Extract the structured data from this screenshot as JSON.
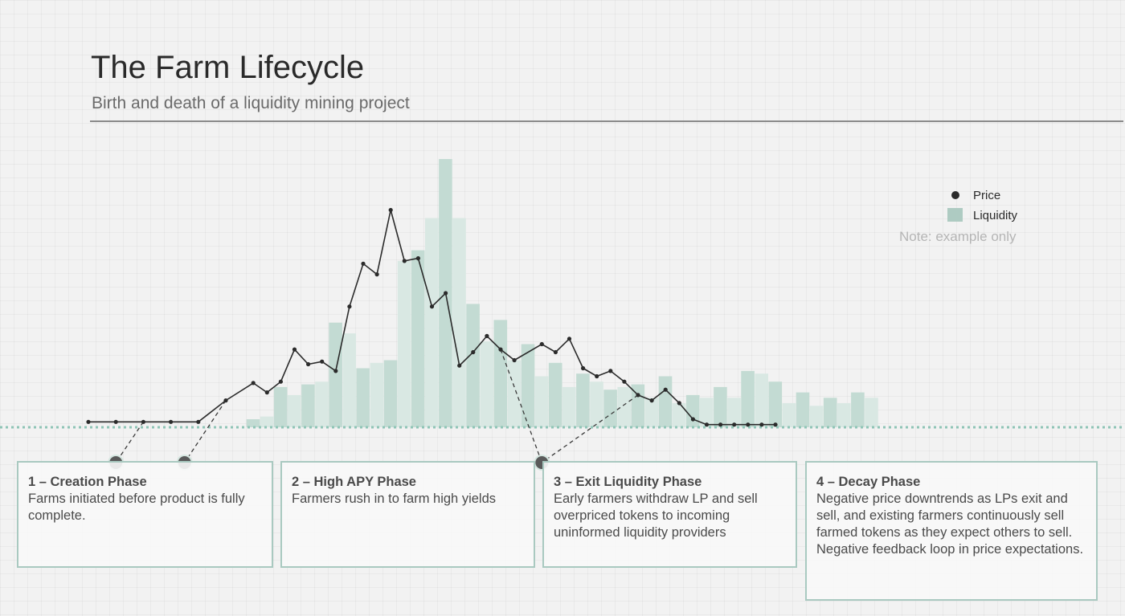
{
  "title": "The Farm Lifecycle",
  "subtitle": "Birth and death of a liquidity mining project",
  "legend": {
    "price": "Price",
    "liquidity": "Liquidity"
  },
  "note": "Note: example only",
  "colors": {
    "bar_dark": "#c3dbd3",
    "bar_light": "#d9e8e3",
    "line": "#2b2b2b",
    "baseline": "#8fc4b6",
    "box_border": "#a9c9c0",
    "marker": "#5a5a5a"
  },
  "phases": [
    {
      "title": "1 – Creation Phase",
      "text": "Farms initiated before product is fully complete."
    },
    {
      "title": "2 – High APY Phase",
      "text": "Farmers rush in to farm high yields"
    },
    {
      "title": "3 – Exit Liquidity Phase",
      "text": "Early farmers withdraw LP and sell overpriced tokens to incoming uninformed liquidity providers"
    },
    {
      "title": "4 – Decay Phase",
      "text": "Negative price downtrends as LPs exit and sell, and existing farmers continuously sell farmed tokens as they expect others to sell. Negative feedback loop in price expectations."
    }
  ],
  "chart_data": {
    "type": "bar",
    "title": "The Farm Lifecycle",
    "subtitle": "Birth and death of a liquidity mining project",
    "xlabel": "",
    "ylabel": "",
    "ylim": [
      0,
      100
    ],
    "grid": true,
    "legend_position": "top-right",
    "series": [
      {
        "name": "Liquidity",
        "type": "bar",
        "values": [
          3,
          4,
          15,
          12,
          16,
          17,
          39,
          35,
          22,
          24,
          25,
          62,
          66,
          78,
          100,
          78,
          46,
          32,
          40,
          25,
          31,
          19,
          24,
          15,
          20,
          17,
          14,
          15,
          16,
          11,
          19,
          9,
          12,
          11,
          15,
          11,
          21,
          20,
          17,
          9,
          13,
          8,
          11,
          9,
          13,
          11
        ]
      },
      {
        "name": "Price",
        "type": "line",
        "x": [
          0,
          2,
          4,
          6,
          8,
          10,
          12,
          13,
          14,
          15,
          16,
          17,
          18,
          19,
          20,
          21,
          22,
          23,
          24,
          25,
          26,
          27,
          28,
          29,
          30,
          31,
          33,
          34,
          35,
          36,
          37,
          38,
          39,
          40,
          41,
          42,
          43,
          44,
          45,
          46,
          47,
          48,
          49,
          50
        ],
        "values": [
          2,
          2,
          2,
          2,
          2,
          10,
          16.5,
          13,
          17,
          29,
          23.5,
          24.5,
          21,
          45,
          61,
          57,
          81,
          62,
          63,
          45,
          50,
          23,
          28,
          34,
          29,
          25,
          31,
          28,
          33,
          22,
          19,
          21,
          17,
          12,
          10,
          14,
          9,
          3,
          1,
          1,
          1,
          1,
          1,
          1
        ]
      }
    ]
  }
}
